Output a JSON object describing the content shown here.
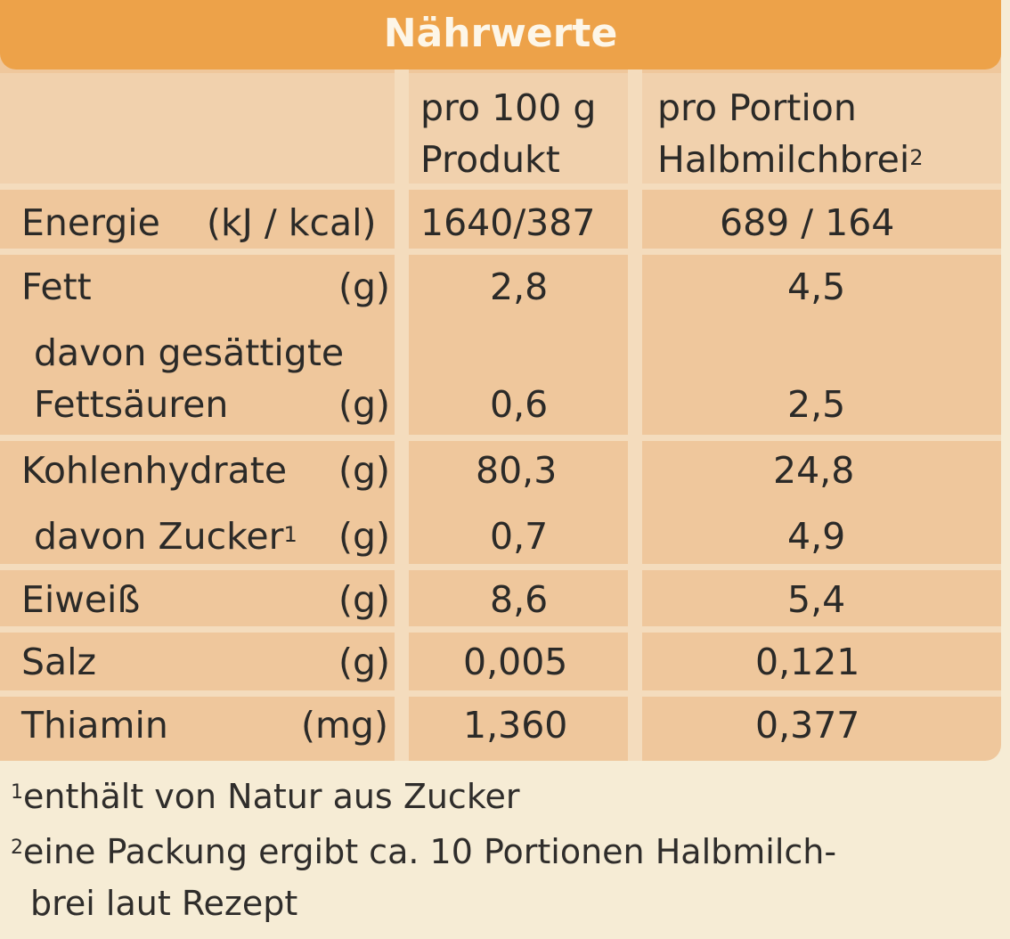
{
  "title": "Nährwerte",
  "header": {
    "col1_line1": "pro 100 g",
    "col1_line2": "Produkt",
    "col2_line1": "pro Portion",
    "col2_line2": "Halbmilchbrei",
    "col2_sup": "2"
  },
  "rows": [
    {
      "label": "Energie",
      "unit": "(kJ / kcal)",
      "per100": "1640/387",
      "portion": "689 / 164"
    },
    {
      "label": "Fett",
      "unit": "(g)",
      "per100": "2,8",
      "portion": "4,5"
    },
    {
      "label_line1": "davon gesättigte",
      "label": "Fettsäuren",
      "unit": "(g)",
      "per100": "0,6",
      "portion": "2,5"
    },
    {
      "label": "Kohlenhydrate",
      "unit": "(g)",
      "per100": "80,3",
      "portion": "24,8"
    },
    {
      "label": "davon Zucker",
      "sup": "1",
      "unit": "(g)",
      "per100": "0,7",
      "portion": "4,9"
    },
    {
      "label": "Eiweiß",
      "unit": "(g)",
      "per100": "8,6",
      "portion": "5,4"
    },
    {
      "label": "Salz",
      "unit": "(g)",
      "per100": "0,005",
      "portion": "0,121"
    },
    {
      "label": "Thiamin",
      "unit": "(mg)",
      "per100": "1,360",
      "portion": "0,377"
    }
  ],
  "footnotes": {
    "n1_mark": "1",
    "n1": "enthält von Natur aus Zucker",
    "n2_mark": "2",
    "n2_line1": "eine Packung ergibt ca. 10 Portionen Halbmilch-",
    "n2_line2": "brei laut Rezept"
  },
  "colors": {
    "title_bar": "#eda249",
    "panel": "#efc79c",
    "background": "#f6ecd5"
  }
}
